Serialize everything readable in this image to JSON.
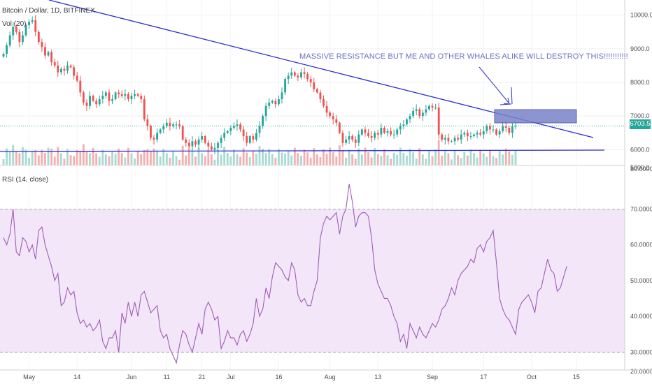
{
  "header": {
    "symbol": "Bitcoin / Dollar, 1D, BITFINEX",
    "vol_label": "Vol (20)"
  },
  "rsi_panel": {
    "label": "RSI (14, close)"
  },
  "annotation": {
    "text": "MASSIVE RESISTANCE BUT ME AND OTHER WHALES ALIKE WILL DESTROY THIS!!!!!!!!!!!"
  },
  "last_price": "6703.5",
  "colors": {
    "up": "#26a69a",
    "down": "#ef5350",
    "trendline": "#2a2fd6",
    "rsi": "#a15cb8",
    "rsi_band": "#f3e6f9",
    "box": "#7a83c9"
  },
  "chart_data": [
    {
      "type": "candlestick",
      "title": "Bitcoin / Dollar, 1D, BITFINEX",
      "ylim": [
        5550,
        10450
      ],
      "y_ticks": [
        "10000.0",
        "9000.0",
        "8000.0",
        "7000.0",
        "6000.0",
        "5000.0"
      ],
      "x_ticks": [
        "May",
        "14",
        "Jun",
        "11",
        "21",
        "Jul",
        "16",
        "Aug",
        "13",
        "Sep",
        "17",
        "Oct",
        "15"
      ],
      "closes": [
        8850,
        9100,
        9400,
        9650,
        9500,
        9200,
        9400,
        9700,
        9800,
        9850,
        9500,
        9200,
        9050,
        8800,
        8900,
        8600,
        8500,
        8300,
        8400,
        8350,
        8500,
        8450,
        8200,
        8050,
        7700,
        7400,
        7300,
        7600,
        7450,
        7350,
        7500,
        7600,
        7700,
        7450,
        7500,
        7700,
        7650,
        7600,
        7650,
        7500,
        7600,
        7650,
        7600,
        7500,
        6900,
        6700,
        6350,
        6300,
        6500,
        6600,
        6700,
        6800,
        6700,
        6750,
        6750,
        6700,
        6300,
        6200,
        6100,
        6250,
        6150,
        6300,
        6400,
        6200,
        6100,
        6000,
        6050,
        6200,
        6350,
        6500,
        6550,
        6650,
        6700,
        6750,
        6600,
        6400,
        6200,
        6400,
        6300,
        6500,
        6700,
        7000,
        7300,
        7400,
        7450,
        7350,
        7500,
        7700,
        8100,
        8200,
        8300,
        8200,
        8150,
        8300,
        8250,
        8100,
        8000,
        7800,
        7700,
        7500,
        7300,
        7100,
        7000,
        6900,
        6800,
        6500,
        6200,
        6300,
        6400,
        6300,
        6200,
        6450,
        6600,
        6500,
        6400,
        6350,
        6500,
        6450,
        6650,
        6500,
        6550,
        6450,
        6450,
        6600,
        6700,
        6750,
        6900,
        7000,
        7150,
        7200,
        7000,
        7100,
        7200,
        7300,
        7250,
        7250,
        6450,
        6300,
        6350,
        6250,
        6250,
        6350,
        6300,
        6450,
        6500,
        6400,
        6400,
        6450,
        6500,
        6450,
        6550,
        6700,
        6600,
        6600,
        6450,
        6550,
        6700,
        6650,
        6500,
        6700,
        6703.5
      ],
      "volume_range": [
        0,
        20000
      ]
    },
    {
      "type": "line",
      "title": "RSI (14, close)",
      "ylim": [
        25,
        82
      ],
      "y_ticks": [
        "80.0000",
        "70.0000",
        "60.0000",
        "50.0000",
        "40.0000",
        "30.0000",
        "20.0000"
      ],
      "bands": [
        30,
        70
      ],
      "series": [
        {
          "values": [
            62,
            60,
            63,
            70,
            58,
            57,
            62,
            61,
            58,
            60,
            56,
            64,
            65,
            60,
            57,
            54,
            50,
            52,
            43,
            44,
            48,
            46,
            47,
            41,
            38,
            39,
            37,
            38,
            36,
            37,
            39,
            33,
            31,
            34,
            34,
            36,
            30,
            41,
            38,
            44,
            40,
            44,
            40,
            46,
            47,
            44,
            41,
            42,
            43,
            36,
            34,
            35,
            31,
            29,
            27,
            32,
            36,
            35,
            32,
            30,
            34,
            38,
            35,
            42,
            44,
            42,
            39,
            40,
            31,
            33,
            36,
            34,
            34,
            32,
            35,
            36,
            33,
            35,
            38,
            45,
            40,
            42,
            48,
            45,
            51,
            55,
            54,
            53,
            51,
            50,
            55,
            53,
            46,
            44,
            45,
            43,
            43,
            47,
            50,
            62,
            66,
            68,
            67,
            68,
            69,
            63,
            68,
            70,
            77,
            72,
            65,
            68,
            69,
            69,
            68,
            62,
            53,
            49,
            47,
            45,
            45,
            43,
            40,
            38,
            33,
            35,
            31,
            38,
            36,
            34,
            37,
            35,
            34,
            36,
            38,
            37,
            39,
            42,
            43,
            45,
            48,
            46,
            50,
            52,
            53,
            54,
            56,
            55,
            59,
            60,
            58,
            61,
            62,
            64,
            55,
            45,
            42,
            40,
            39,
            37,
            35,
            42,
            44,
            45,
            46,
            44,
            41,
            47,
            48,
            52,
            56,
            53,
            52,
            47,
            48,
            51,
            54
          ]
        }
      ]
    }
  ]
}
